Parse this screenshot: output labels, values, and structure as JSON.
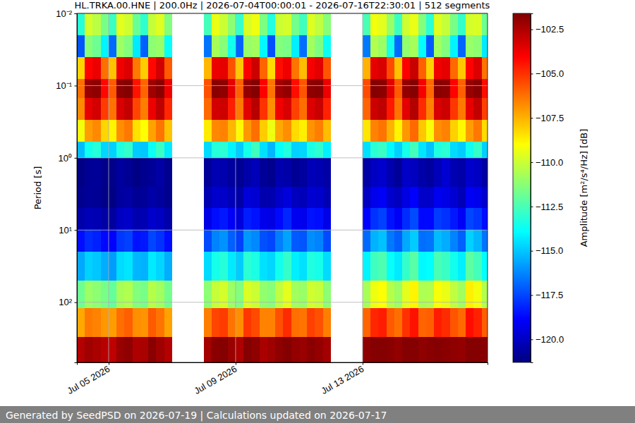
{
  "chart_data": {
    "type": "heatmap",
    "title": "HL.TRKA.00.HNE | 200.0Hz | 2026-07-04T00:00:01 - 2026-07-16T22:30:01 | 512 segments",
    "y_label": "Period [s]",
    "footer": "Generated by SeedPSD on 2026-07-19 | Calculations updated on 2026-07-17",
    "log": "y",
    "grid": true,
    "xlim": [
      "2026-07-04T00:00:01",
      "2026-07-16T22:30:01"
    ],
    "xticks": [
      {
        "value": "2026-07-05T00:00:00",
        "label": "Jul 05 2026"
      },
      {
        "value": "2026-07-09T00:00:00",
        "label": "Jul 09 2026"
      },
      {
        "value": "2026-07-13T00:00:00",
        "label": "Jul 13 2026"
      }
    ],
    "ylim": [
      0.01,
      680
    ],
    "yticks": [
      {
        "value": 0.01,
        "label": "10⁻²"
      },
      {
        "value": 0.1,
        "label": "10⁻¹"
      },
      {
        "value": 1,
        "label": "10⁰"
      },
      {
        "value": 10,
        "label": "10¹"
      },
      {
        "value": 100,
        "label": "10²"
      }
    ],
    "x_bins": [
      "2026-07-04T00:00:00",
      "2026-07-04T06:00:00",
      "2026-07-04T12:00:00",
      "2026-07-04T18:00:00",
      "2026-07-05T00:00:00",
      "2026-07-05T06:00:00",
      "2026-07-05T12:00:00",
      "2026-07-05T18:00:00",
      "2026-07-06T00:00:00",
      "2026-07-06T06:00:00",
      "2026-07-06T12:00:00",
      "2026-07-06T18:00:00",
      "2026-07-07T00:00:00",
      "2026-07-07T06:00:00",
      "2026-07-07T12:00:00",
      "2026-07-07T18:00:00",
      "2026-07-08T00:00:00",
      "2026-07-08T06:00:00",
      "2026-07-08T12:00:00",
      "2026-07-08T18:00:00",
      "2026-07-09T00:00:00",
      "2026-07-09T06:00:00",
      "2026-07-09T12:00:00",
      "2026-07-09T18:00:00",
      "2026-07-10T00:00:00",
      "2026-07-10T06:00:00",
      "2026-07-10T12:00:00",
      "2026-07-10T18:00:00",
      "2026-07-11T00:00:00",
      "2026-07-11T06:00:00",
      "2026-07-11T12:00:00",
      "2026-07-11T18:00:00",
      "2026-07-12T00:00:00",
      "2026-07-12T06:00:00",
      "2026-07-12T12:00:00",
      "2026-07-12T18:00:00",
      "2026-07-13T00:00:00",
      "2026-07-13T06:00:00",
      "2026-07-13T12:00:00",
      "2026-07-13T18:00:00",
      "2026-07-14T00:00:00",
      "2026-07-14T06:00:00",
      "2026-07-14T12:00:00",
      "2026-07-14T18:00:00",
      "2026-07-15T00:00:00",
      "2026-07-15T06:00:00",
      "2026-07-15T12:00:00",
      "2026-07-15T18:00:00",
      "2026-07-16T00:00:00",
      "2026-07-16T06:00:00",
      "2026-07-16T12:00:00",
      "2026-07-16T18:00:00",
      "2026-07-17T00:00:00"
    ],
    "y_bins": [
      0.01,
      0.02,
      0.04,
      0.08,
      0.15,
      0.3,
      0.6,
      1,
      2.5,
      5,
      10,
      20,
      50,
      120,
      300,
      680
    ],
    "cells": [
      [
        -113.2,
        -109.8,
        -110.3,
        -111.6,
        -112.8,
        -109.5,
        -109.9,
        -111.9,
        -113.0,
        -110.1,
        -109.6,
        -111.4,
        null,
        null,
        null,
        null,
        -112.6,
        -109.4,
        -110.0,
        -111.2,
        -112.9,
        -109.7,
        -109.3,
        -111.5,
        -113.3,
        -110.0,
        -109.8,
        -111.7,
        -112.7,
        -109.6,
        -110.2,
        -111.3,
        null,
        null,
        null,
        null,
        -112.5,
        -109.2,
        -109.5,
        -111.0,
        -112.8,
        -109.9,
        -109.4,
        -111.4,
        -113.1,
        -109.6,
        -110.1,
        -111.6,
        -112.9,
        -109.8,
        -109.7,
        -111.8
      ],
      [
        -117.2,
        -111.3,
        -111.8,
        -114.1,
        -116.8,
        -110.9,
        -111.4,
        -114.3,
        -117.0,
        -111.2,
        -111.0,
        -113.8,
        null,
        null,
        null,
        null,
        -116.6,
        -110.7,
        -111.3,
        -113.6,
        -116.9,
        -111.0,
        -110.8,
        -114.0,
        -117.3,
        -111.4,
        -111.6,
        -114.2,
        -116.7,
        -110.8,
        -111.5,
        -113.7,
        null,
        null,
        null,
        null,
        -116.5,
        -110.5,
        -110.9,
        -113.5,
        -116.8,
        -111.1,
        -110.7,
        -113.9,
        -117.1,
        -110.8,
        -111.4,
        -114.1,
        -116.9,
        -111.0,
        -111.2,
        -114.3
      ],
      [
        -108.2,
        -104.1,
        -103.7,
        -106.2,
        -107.8,
        -103.8,
        -103.4,
        -106.4,
        -108.0,
        -104.2,
        -103.2,
        -105.8,
        null,
        null,
        null,
        null,
        -107.6,
        -103.7,
        -103.6,
        -105.6,
        -107.9,
        -104.0,
        -103.1,
        -106.0,
        -108.3,
        -104.3,
        -103.8,
        -106.3,
        -107.7,
        -103.9,
        -103.5,
        -105.7,
        null,
        null,
        null,
        null,
        -107.5,
        -103.6,
        -103.3,
        -105.5,
        -107.8,
        -104.0,
        -103.0,
        -105.9,
        -108.1,
        -103.8,
        -103.6,
        -106.1,
        -107.9,
        -104.1,
        -103.4,
        -106.3
      ],
      [
        -106.2,
        -102.1,
        -101.9,
        -104.2,
        -105.8,
        -101.9,
        -101.7,
        -104.4,
        -106.0,
        -102.2,
        -101.8,
        -103.8,
        null,
        null,
        null,
        null,
        -105.6,
        -101.8,
        -101.9,
        -103.6,
        -105.9,
        -102.0,
        -101.7,
        -104.0,
        -106.3,
        -102.3,
        -102.0,
        -104.3,
        -105.7,
        -101.9,
        -101.8,
        -103.7,
        null,
        null,
        null,
        null,
        -105.5,
        -101.7,
        -101.8,
        -103.5,
        -105.8,
        -102.0,
        -101.7,
        -103.9,
        -106.1,
        -101.8,
        -101.9,
        -104.1,
        -105.9,
        -102.1,
        -101.8,
        -104.3
      ],
      [
        -106.7,
        -103.6,
        -103.2,
        -105.2,
        -106.3,
        -103.3,
        -102.9,
        -105.4,
        -106.5,
        -103.7,
        -102.8,
        -104.8,
        null,
        null,
        null,
        null,
        -106.1,
        -103.2,
        -103.1,
        -104.6,
        -106.4,
        -103.5,
        -102.7,
        -105.0,
        -106.8,
        -103.8,
        -103.3,
        -105.3,
        -106.2,
        -103.4,
        -103.0,
        -104.7,
        null,
        null,
        null,
        null,
        -106.0,
        -103.1,
        -102.8,
        -104.5,
        -106.3,
        -103.5,
        -102.6,
        -104.9,
        -106.6,
        -103.3,
        -103.1,
        -105.1,
        -106.4,
        -103.6,
        -102.9,
        -105.3
      ],
      [
        -109.2,
        -107.1,
        -106.7,
        -108.2,
        -108.8,
        -106.8,
        -106.4,
        -108.4,
        -109.0,
        -107.2,
        -106.3,
        -107.8,
        null,
        null,
        null,
        null,
        -108.6,
        -106.7,
        -106.6,
        -107.6,
        -108.9,
        -107.0,
        -106.2,
        -108.0,
        -109.3,
        -107.3,
        -106.8,
        -108.3,
        -108.7,
        -106.9,
        -106.5,
        -107.7,
        null,
        null,
        null,
        null,
        -108.5,
        -106.6,
        -106.3,
        -107.5,
        -108.8,
        -107.0,
        -106.1,
        -107.9,
        -109.1,
        -106.8,
        -106.6,
        -108.1,
        -108.9,
        -107.1,
        -106.4,
        -108.3
      ],
      [
        -115.2,
        -113.6,
        -113.2,
        -114.7,
        -114.8,
        -113.3,
        -112.9,
        -114.9,
        -115.0,
        -113.7,
        -112.8,
        -114.3,
        null,
        null,
        null,
        null,
        -114.6,
        -113.2,
        -113.1,
        -114.1,
        -114.9,
        -113.5,
        -112.7,
        -114.5,
        -115.3,
        -113.8,
        -113.3,
        -114.8,
        -114.7,
        -113.4,
        -113.0,
        -114.2,
        null,
        null,
        null,
        null,
        -114.5,
        -113.1,
        -112.8,
        -114.0,
        -114.8,
        -113.5,
        -112.6,
        -114.4,
        -115.1,
        -113.3,
        -113.1,
        -114.6,
        -114.9,
        -113.6,
        -112.9,
        -114.8
      ],
      [
        -121.2,
        -120.9,
        -120.8,
        -121.1,
        -121.1,
        -120.7,
        -120.9,
        -121.2,
        -121.0,
        -120.8,
        -120.6,
        -121.0,
        null,
        null,
        null,
        null,
        -120.8,
        -120.3,
        -120.4,
        -120.7,
        -120.9,
        -120.5,
        -120.2,
        -120.8,
        -121.0,
        -120.4,
        -120.5,
        -120.9,
        -120.7,
        -120.2,
        -120.3,
        -120.6,
        null,
        null,
        null,
        null,
        -120.6,
        -120.0,
        -119.8,
        -120.4,
        -120.8,
        -119.9,
        -120.1,
        -120.5,
        -120.7,
        -120.2,
        -119.7,
        -120.3,
        -120.5,
        -119.8,
        -120.0,
        -120.6
      ],
      [
        -121.0,
        -120.8,
        -120.9,
        -121.1,
        -121.2,
        -120.7,
        -120.6,
        -120.9,
        -120.8,
        -120.5,
        -120.7,
        -121.0,
        null,
        null,
        null,
        null,
        -120.3,
        -119.8,
        -119.9,
        -120.2,
        -120.5,
        -119.6,
        -119.7,
        -120.4,
        -120.4,
        -119.9,
        -119.5,
        -120.1,
        -120.2,
        -119.7,
        -119.8,
        -120.3,
        null,
        null,
        null,
        null,
        -120.0,
        -119.2,
        -119.0,
        -119.8,
        -120.1,
        -119.4,
        -118.9,
        -119.9,
        -119.9,
        -119.1,
        -119.3,
        -119.7,
        -120.2,
        -119.0,
        -119.2,
        -119.8
      ],
      [
        -120.5,
        -120.2,
        -120.3,
        -120.6,
        -120.7,
        -120.0,
        -119.9,
        -120.4,
        -120.3,
        -119.8,
        -120.0,
        -120.5,
        null,
        null,
        null,
        null,
        -119.3,
        -118.6,
        -118.4,
        -119.0,
        -119.5,
        -118.3,
        -118.5,
        -119.2,
        -119.4,
        -118.7,
        -118.1,
        -119.1,
        -119.2,
        -118.5,
        -118.6,
        -119.3,
        null,
        null,
        null,
        null,
        -118.8,
        -117.9,
        -117.6,
        -118.5,
        -119.0,
        -118.0,
        -117.4,
        -118.7,
        -118.7,
        -117.7,
        -117.9,
        -118.4,
        -119.0,
        -117.5,
        -117.8,
        -118.6
      ],
      [
        -118.6,
        -118.0,
        -118.2,
        -118.7,
        -118.9,
        -117.8,
        -117.6,
        -118.5,
        -118.4,
        -117.5,
        -117.9,
        -118.6,
        null,
        null,
        null,
        null,
        -117.4,
        -116.3,
        -116.0,
        -117.0,
        -117.6,
        -115.9,
        -116.2,
        -117.3,
        -117.5,
        -116.4,
        -115.7,
        -117.1,
        -117.2,
        -116.1,
        -116.3,
        -117.4,
        null,
        null,
        null,
        null,
        -116.8,
        -115.4,
        -115.1,
        -116.5,
        -117.0,
        -115.6,
        -114.9,
        -116.7,
        -116.6,
        -115.2,
        -115.5,
        -116.3,
        -117.0,
        -114.8,
        -115.3,
        -116.6
      ],
      [
        -115.6,
        -114.8,
        -115.0,
        -115.5,
        -115.8,
        -114.6,
        -114.4,
        -115.3,
        -115.4,
        -114.3,
        -114.7,
        -115.5,
        null,
        null,
        null,
        null,
        -114.6,
        -113.5,
        -113.2,
        -114.3,
        -114.9,
        -113.1,
        -113.4,
        -114.5,
        -114.7,
        -113.6,
        -112.9,
        -114.2,
        -114.5,
        -113.3,
        -113.5,
        -114.6,
        null,
        null,
        null,
        null,
        -114.1,
        -112.7,
        -112.4,
        -113.8,
        -114.3,
        -112.9,
        -112.2,
        -114.0,
        -113.9,
        -112.5,
        -112.8,
        -113.6,
        -114.2,
        -112.1,
        -112.6,
        -113.9
      ],
      [
        -111.8,
        -110.9,
        -111.2,
        -111.6,
        -112.0,
        -110.7,
        -110.5,
        -111.4,
        -111.6,
        -110.4,
        -110.8,
        -111.7,
        null,
        null,
        null,
        null,
        -111.2,
        -110.1,
        -109.8,
        -110.9,
        -111.4,
        -109.7,
        -110.0,
        -111.1,
        -111.3,
        -110.2,
        -109.5,
        -110.8,
        -111.0,
        -109.9,
        -110.1,
        -111.2,
        null,
        null,
        null,
        null,
        -110.7,
        -109.3,
        -109.0,
        -110.4,
        -110.9,
        -109.5,
        -108.8,
        -110.6,
        -110.5,
        -109.1,
        -109.4,
        -110.2,
        -110.8,
        -108.7,
        -109.2,
        -110.5
      ],
      [
        -107.3,
        -106.4,
        -106.6,
        -107.0,
        -107.1,
        -106.2,
        -105.9,
        -106.8,
        -106.9,
        -105.8,
        -106.3,
        -107.2,
        null,
        null,
        null,
        null,
        -106.5,
        -105.4,
        -105.2,
        -106.3,
        -106.8,
        -105.1,
        -105.5,
        -106.6,
        -106.6,
        -105.6,
        -104.9,
        -106.2,
        -106.3,
        -105.3,
        -105.6,
        -106.5,
        null,
        null,
        null,
        null,
        -106.0,
        -104.8,
        -104.6,
        -105.8,
        -106.2,
        -105.0,
        -104.4,
        -106.0,
        -105.9,
        -104.6,
        -104.9,
        -105.7,
        -106.1,
        -104.3,
        -104.7,
        -105.9
      ],
      [
        -102.6,
        -102.2,
        -102.4,
        -102.7,
        -102.8,
        -102.1,
        -101.9,
        -102.5,
        -102.4,
        -101.8,
        -102.2,
        -102.6,
        null,
        null,
        null,
        null,
        -102.3,
        -101.8,
        -101.7,
        -102.1,
        -102.5,
        -101.7,
        -101.9,
        -102.4,
        -102.2,
        -101.9,
        -101.7,
        -102.0,
        -102.1,
        -101.8,
        -102.0,
        -102.3,
        null,
        null,
        null,
        null,
        -101.9,
        -101.7,
        -101.7,
        -101.8,
        -102.0,
        -101.7,
        -101.7,
        -101.9,
        -101.8,
        -101.7,
        -101.8,
        -101.9,
        -102.0,
        -101.7,
        -101.7,
        -101.8
      ]
    ],
    "colorbar": {
      "label": "Amplitude [m²/s⁴/Hz] [dB]",
      "range": [
        -121.3,
        -101.6
      ],
      "ticks": [
        {
          "value": -120,
          "label": "−120.0"
        },
        {
          "value": -117.5,
          "label": "−117.5"
        },
        {
          "value": -115,
          "label": "−115.0"
        },
        {
          "value": -112.5,
          "label": "−112.5"
        },
        {
          "value": -110,
          "label": "−110.0"
        },
        {
          "value": -107.5,
          "label": "−107.5"
        },
        {
          "value": -105,
          "label": "−105.0"
        },
        {
          "value": -102.5,
          "label": "−102.5"
        }
      ]
    }
  }
}
